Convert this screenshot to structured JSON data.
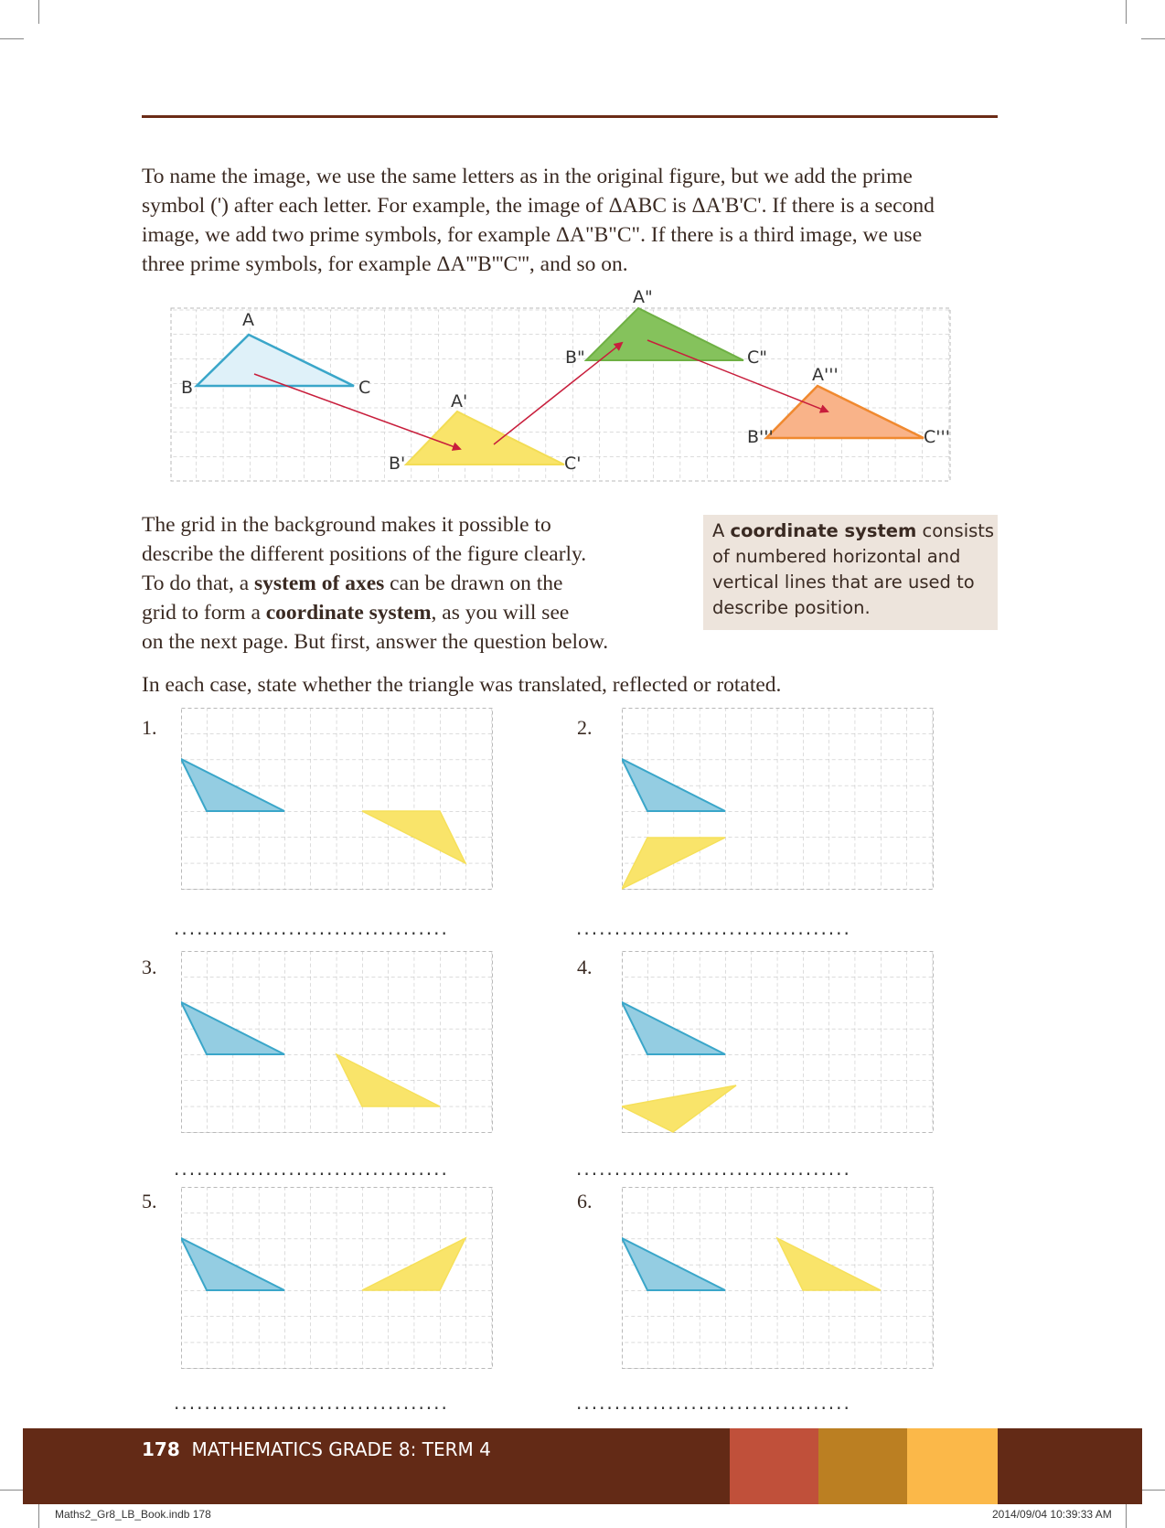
{
  "intro": {
    "line1": "To name the image, we use the same letters as in the original figure, but we add the prime",
    "line2": "symbol (') after each letter. For example, the image of ΔABC is ΔA'B'C'. If there is a second",
    "line3": "image, we add two prime symbols, for example ΔA\"B\"C\". If there is a third image, we use",
    "line4": "three prime symbols, for example ΔA'''B'''C''', and so on."
  },
  "diagram": {
    "labels": {
      "A": "A",
      "B": "B",
      "C": "C",
      "A1": "A'",
      "B1": "B'",
      "C1": "C'",
      "A2": "A\"",
      "B2": "B\"",
      "C2": "C\"",
      "A3": "A'''",
      "B3": "B'''",
      "C3": "C'''"
    },
    "colors": {
      "blue": "#3aa6c9",
      "yellow": "#f9e46a",
      "green": "#74b84b",
      "orange": "#f4913e",
      "arrow": "#c81e3c"
    }
  },
  "body": {
    "line1": "The grid in the background makes it possible to",
    "line2": "describe the different positions of the figure clearly.",
    "line3a": "To do that, a ",
    "line3b": "system of axes",
    "line3c": " can be drawn on the",
    "line4a": "grid to form a ",
    "line4b": "coordinate system",
    "line4c": ", as you will see",
    "line5": "on the next page. But first, answer the question below."
  },
  "note": {
    "a": "A ",
    "bold": "coordinate system",
    "b": " consists",
    "line2": "of numbered horizontal and",
    "line3": "vertical lines that are used to",
    "line4": "describe position."
  },
  "question": "In each case, state whether the triangle was translated, reflected or rotated.",
  "exercises": [
    {
      "number": "1."
    },
    {
      "number": "2."
    },
    {
      "number": "3."
    },
    {
      "number": "4."
    },
    {
      "number": "5."
    },
    {
      "number": "6."
    }
  ],
  "answer_line": "....................................",
  "footer": {
    "page": "178",
    "title": "MATHEMATICS GRADE 8: TERM 4",
    "colors": [
      "#c0503a",
      "#bb7f22",
      "#fbb849"
    ]
  },
  "print": {
    "left": "Maths2_Gr8_LB_Book.indb   178",
    "right": "2014/09/04   10:39:33 AM"
  }
}
